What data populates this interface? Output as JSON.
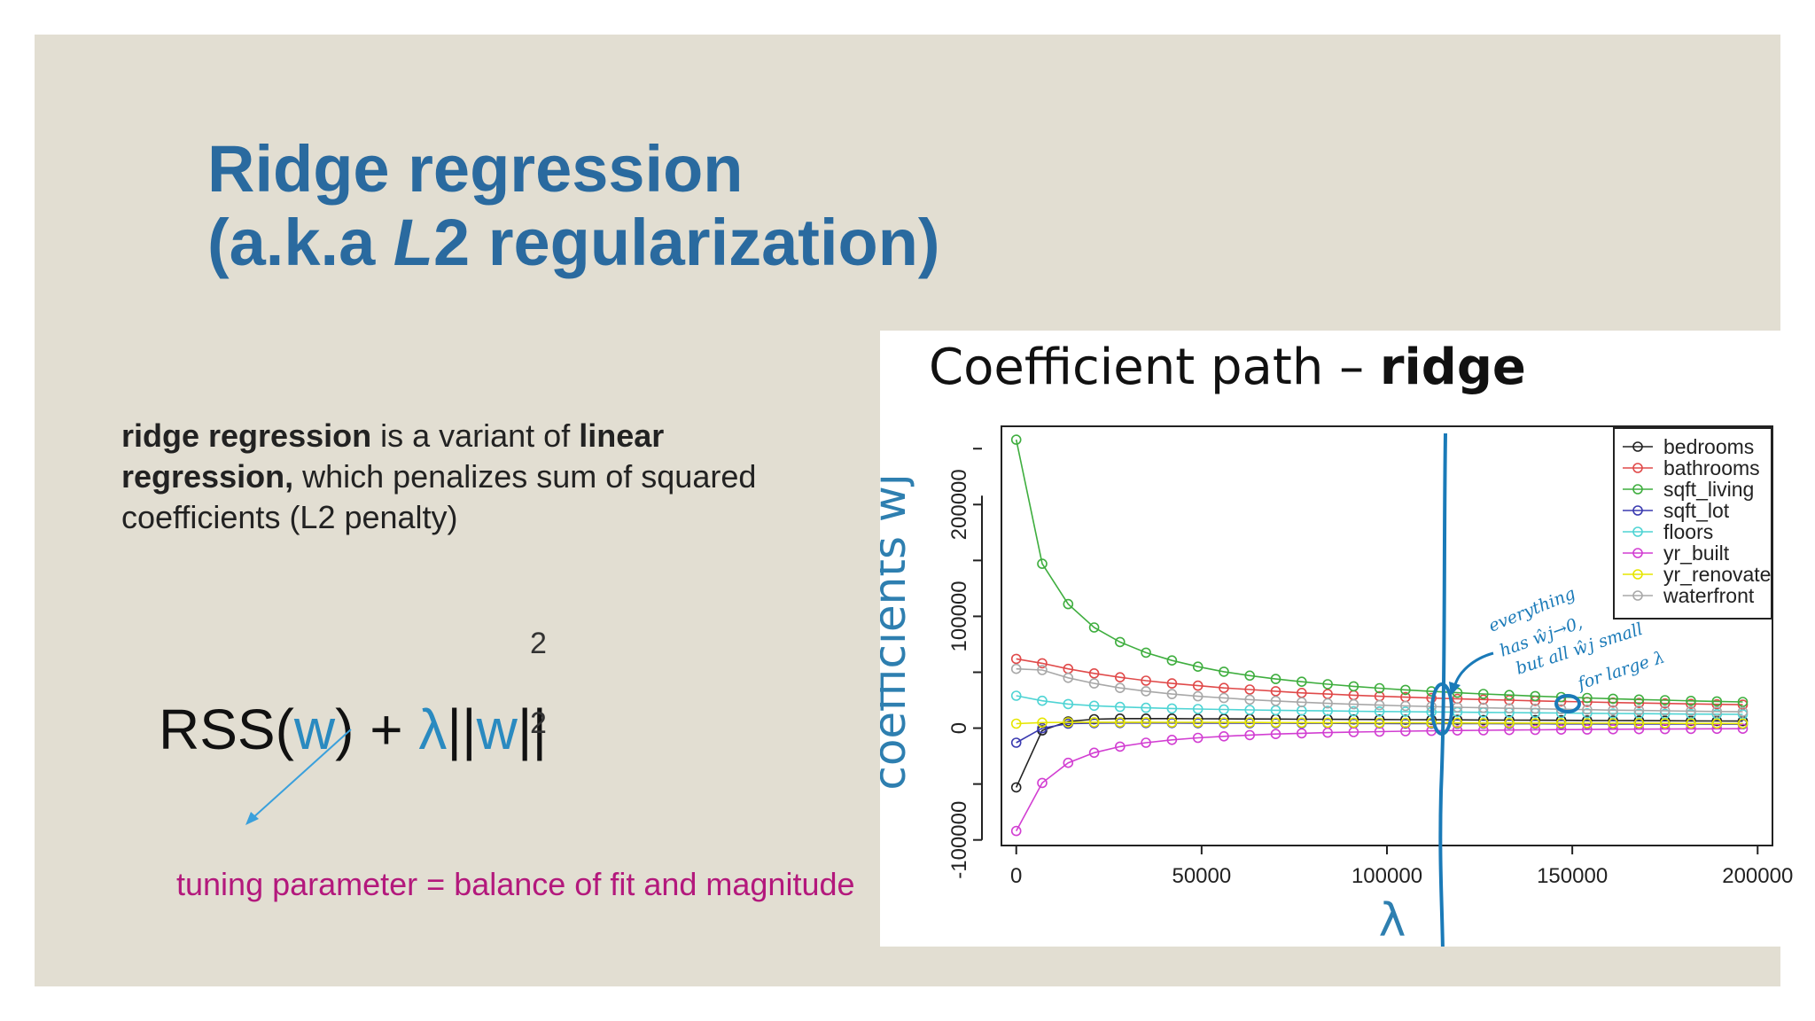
{
  "slide": {
    "title_line1": "Ridge regression",
    "title_line2_pre": "(a.k.a ",
    "title_line2_italic": "L",
    "title_line2_post": "2 regularization)",
    "description": {
      "bold1": "ridge regression",
      "text1": " is a variant of ",
      "bold2": "linear regression,",
      "text2": " which penalizes sum of squared coefficients (L2 penalty)"
    },
    "formula": {
      "rss": "RSS(",
      "w1": "w",
      "close_plus": ") + ",
      "lambda": "λ",
      "norm_open": "||",
      "w2": "w",
      "norm_close": "||",
      "superscript": "2",
      "subscript": "2"
    },
    "annotation": "tuning parameter = balance of fit and magnitude",
    "colors": {
      "title": "#2a6a9f",
      "accent_blue": "#2a8ac0",
      "annotation": "#b3187c",
      "background": "#e2ded2"
    }
  },
  "chart_data": {
    "type": "line",
    "title_regular": "Coefficient path – ",
    "title_bold": "ridge",
    "xlabel": "λ",
    "ylabel": "coefficients ŵj",
    "xlim": [
      -4000,
      204000
    ],
    "ylim": [
      -105000,
      270000
    ],
    "x_ticks": [
      0,
      50000,
      100000,
      150000,
      200000
    ],
    "x_tick_labels": [
      "0",
      "50000",
      "100000",
      "150000",
      "200000"
    ],
    "y_ticks": [
      -100000,
      0,
      100000,
      200000
    ],
    "y_tick_labels": [
      "-100000",
      "0",
      "100000",
      "200000"
    ],
    "legend_position": "top-right",
    "x": [
      0,
      7000,
      14000,
      21000,
      28000,
      35000,
      42000,
      49000,
      56000,
      63000,
      70000,
      77000,
      84000,
      91000,
      98000,
      105000,
      112000,
      119000,
      126000,
      133000,
      140000,
      147000,
      154000,
      161000,
      168000,
      175000,
      182000,
      189000,
      196000
    ],
    "series": [
      {
        "name": "bedrooms",
        "color": "#222222",
        "values": [
          -53000,
          -2000,
          6000,
          8000,
          8500,
          8500,
          8500,
          8400,
          8300,
          8200,
          8100,
          8000,
          7900,
          7800,
          7700,
          7600,
          7500,
          7400,
          7300,
          7200,
          7100,
          7000,
          6900,
          6800,
          6700,
          6600,
          6500,
          6400,
          6300
        ]
      },
      {
        "name": "bathrooms",
        "color": "#e04a4a",
        "values": [
          62000,
          58000,
          53000,
          49000,
          45500,
          42500,
          40000,
          38000,
          36000,
          34500,
          33000,
          31500,
          30500,
          29500,
          28500,
          27700,
          26900,
          26200,
          25600,
          25000,
          24400,
          23900,
          23400,
          22900,
          22500,
          22100,
          21700,
          21300,
          21000
        ]
      },
      {
        "name": "sqft_living",
        "color": "#3fae3f",
        "values": [
          258000,
          147000,
          111000,
          90000,
          77000,
          67500,
          60500,
          55000,
          50500,
          47000,
          44000,
          41500,
          39300,
          37400,
          35700,
          34200,
          32900,
          31700,
          30600,
          29600,
          28700,
          27800,
          27000,
          26300,
          25600,
          25000,
          24400,
          23900,
          23400
        ]
      },
      {
        "name": "sqft_lot",
        "color": "#3a3ab0",
        "values": [
          -13000,
          0,
          4000,
          4500,
          4600,
          4600,
          4600,
          4500,
          4500,
          4400,
          4400,
          4300,
          4300,
          4200,
          4200,
          4100,
          4100,
          4000,
          4000,
          3900,
          3900,
          3800,
          3800,
          3700,
          3700,
          3600,
          3600,
          3500,
          3500
        ]
      },
      {
        "name": "floors",
        "color": "#4fd4d4",
        "values": [
          29000,
          24500,
          21500,
          20000,
          19000,
          18200,
          17600,
          17100,
          16700,
          16300,
          16000,
          15700,
          15400,
          15100,
          14900,
          14700,
          14500,
          14300,
          14100,
          13900,
          13700,
          13500,
          13300,
          13100,
          13000,
          12800,
          12600,
          12500,
          12300
        ]
      },
      {
        "name": "yr_built",
        "color": "#d23fd2",
        "values": [
          -92000,
          -49000,
          -31000,
          -22000,
          -16500,
          -13000,
          -10500,
          -8700,
          -7300,
          -6200,
          -5300,
          -4600,
          -4000,
          -3500,
          -3100,
          -2700,
          -2400,
          -2100,
          -1900,
          -1700,
          -1500,
          -1300,
          -1200,
          -1000,
          -900,
          -800,
          -700,
          -600,
          -500
        ]
      },
      {
        "name": "yr_renovated",
        "color": "#e6e600",
        "values": [
          4000,
          5000,
          5200,
          5300,
          5300,
          5300,
          5200,
          5200,
          5100,
          5100,
          5000,
          5000,
          4900,
          4900,
          4800,
          4800,
          4700,
          4700,
          4600,
          4600,
          4500,
          4500,
          4400,
          4400,
          4300,
          4300,
          4200,
          4200,
          4100
        ]
      },
      {
        "name": "waterfront",
        "color": "#a8a8a8",
        "values": [
          53000,
          52000,
          45000,
          40000,
          36000,
          33000,
          30500,
          28500,
          27000,
          25500,
          24300,
          23200,
          22200,
          21400,
          20600,
          19900,
          19300,
          18700,
          18200,
          17700,
          17300,
          16900,
          16500,
          16100,
          15800,
          15500,
          15200,
          14900,
          14600
        ]
      }
    ],
    "legend_labels": [
      "bedrooms",
      "bathrooms",
      "sqft_living",
      "sqft_lot",
      "floors",
      "yr_built",
      "yr_renovated",
      "waterfront"
    ],
    "handwritten_note": [
      "everything",
      "has ŵj→0,",
      "but all ŵj small",
      "for large λ"
    ],
    "annotation_color": "#1a7ab8"
  }
}
